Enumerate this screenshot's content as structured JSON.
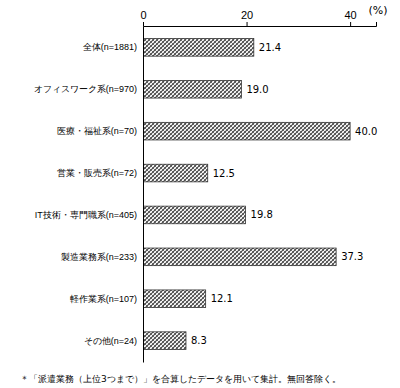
{
  "chart_data": {
    "type": "bar",
    "orientation": "horizontal",
    "xlabel": "(%)",
    "categories": [
      "全体(n=1881)",
      "オフィスワーク系(n=970)",
      "医療・福祉系(n=70)",
      "営業・販売系(n=72)",
      "IT技術・専門職系(n=405)",
      "製造業務系(n=233)",
      "軽作業系(n=107)",
      "その他(n=24)"
    ],
    "values": [
      21.4,
      19.0,
      40.0,
      12.5,
      19.8,
      37.3,
      12.1,
      8.3
    ],
    "value_labels": [
      "21.4",
      "19.0",
      "40.0",
      "12.5",
      "19.8",
      "37.3",
      "12.1",
      "8.3"
    ],
    "color": "#444444",
    "xlim": [
      0,
      45
    ],
    "xticks": [
      0,
      20,
      40
    ],
    "grid": false,
    "data_labels": true,
    "annotations": [
      "＊「派遣業務（上位3つまで）」を合算したデータを用いて集計。無回答除く。"
    ]
  }
}
